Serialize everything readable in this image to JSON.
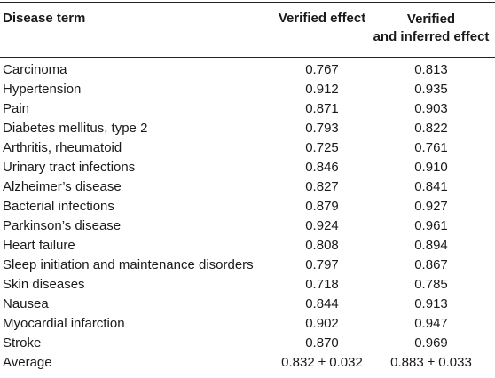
{
  "table": {
    "headers": {
      "disease_term": "Disease term",
      "verified": "Verified effect",
      "inferred_line1": "Verified",
      "inferred_line2": "and inferred effect"
    },
    "rows": [
      {
        "term": "Carcinoma",
        "verified": "0.767",
        "inferred": "0.813"
      },
      {
        "term": "Hypertension",
        "verified": "0.912",
        "inferred": "0.935"
      },
      {
        "term": "Pain",
        "verified": "0.871",
        "inferred": "0.903"
      },
      {
        "term": "Diabetes mellitus, type 2",
        "verified": "0.793",
        "inferred": "0.822"
      },
      {
        "term": "Arthritis, rheumatoid",
        "verified": "0.725",
        "inferred": "0.761"
      },
      {
        "term": "Urinary tract infections",
        "verified": "0.846",
        "inferred": "0.910"
      },
      {
        "term": "Alzheimer’s disease",
        "verified": "0.827",
        "inferred": "0.841"
      },
      {
        "term": "Bacterial infections",
        "verified": "0.879",
        "inferred": "0.927"
      },
      {
        "term": "Parkinson’s disease",
        "verified": "0.924",
        "inferred": "0.961"
      },
      {
        "term": "Heart failure",
        "verified": "0.808",
        "inferred": "0.894"
      },
      {
        "term": "Sleep initiation and maintenance disorders",
        "verified": "0.797",
        "inferred": "0.867"
      },
      {
        "term": "Skin diseases",
        "verified": "0.718",
        "inferred": "0.785"
      },
      {
        "term": "Nausea",
        "verified": "0.844",
        "inferred": "0.913"
      },
      {
        "term": "Myocardial infarction",
        "verified": "0.902",
        "inferred": "0.947"
      },
      {
        "term": "Stroke",
        "verified": "0.870",
        "inferred": "0.969"
      },
      {
        "term": "Average",
        "verified": "0.832 ± 0.032",
        "inferred": "0.883 ± 0.033"
      }
    ]
  }
}
